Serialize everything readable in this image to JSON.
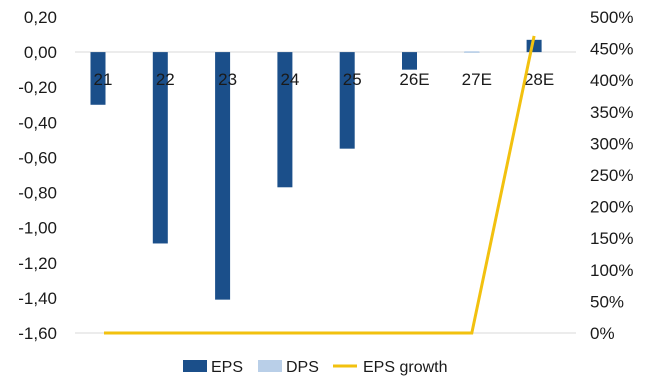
{
  "chart_data": {
    "type": "bar",
    "categories": [
      "21",
      "22",
      "23",
      "24",
      "25",
      "26E",
      "27E",
      "28E"
    ],
    "series": [
      {
        "name": "EPS",
        "kind": "bar",
        "axis": "left",
        "color": "#1b4f8a",
        "values": [
          -0.3,
          -1.09,
          -1.41,
          -0.77,
          -0.55,
          -0.1,
          0.0,
          0.07
        ]
      },
      {
        "name": "DPS",
        "kind": "bar",
        "axis": "left",
        "color": "#b9cfe8",
        "values": [
          0,
          0,
          0,
          0,
          0,
          0,
          0.005,
          0
        ]
      },
      {
        "name": "EPS growth",
        "kind": "line",
        "axis": "right",
        "color": "#f2c10f",
        "values": [
          0,
          0,
          0,
          0,
          0,
          0,
          0,
          470
        ]
      }
    ],
    "y_left": {
      "ylim": [
        -1.6,
        0.2
      ],
      "ticks": [
        "0,20",
        "0,00",
        "-0,20",
        "-0,40",
        "-0,60",
        "-0,80",
        "-1,00",
        "-1,20",
        "-1,40",
        "-1,60"
      ]
    },
    "y_right": {
      "ylim": [
        0,
        500
      ],
      "ticks": [
        "500%",
        "450%",
        "400%",
        "350%",
        "300%",
        "250%",
        "200%",
        "150%",
        "100%",
        "50%",
        "0%"
      ]
    },
    "legend": {
      "position": "bottom",
      "items": [
        "EPS",
        "DPS",
        "EPS growth"
      ]
    },
    "grid": false
  }
}
